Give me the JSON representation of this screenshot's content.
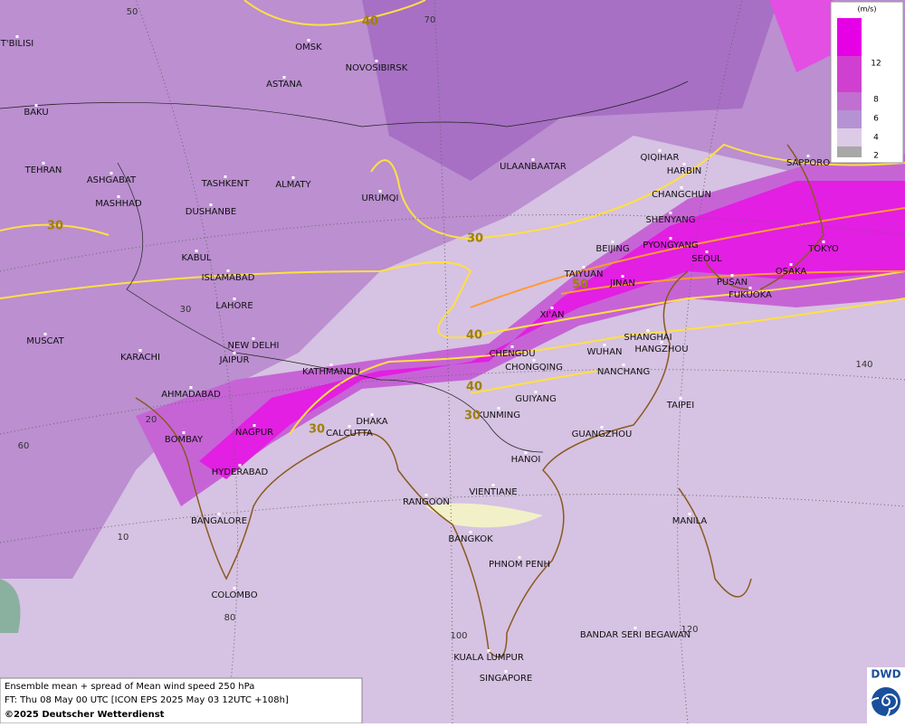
{
  "map": {
    "cities": [
      "OMSK",
      "NOVOSIBIRSK",
      "T'BILISI",
      "BAKU",
      "ASTANA",
      "TEHRAN",
      "ASHGABAT",
      "MASHHAD",
      "TASHKENT",
      "ALMATY",
      "DUSHANBE",
      "URUMQI",
      "ULAANBAATAR",
      "QIQIHAR",
      "HARBIN",
      "SAPPORO",
      "CHANGCHUN",
      "SHENYANG",
      "BEIJING",
      "PYONGYANG",
      "SEOUL",
      "TOKYO",
      "OSAKA",
      "TAIYUAN",
      "JINAN",
      "PUSAN",
      "FUKUOKA",
      "KABUL",
      "ISLAMABAD",
      "LAHORE",
      "XI'AN",
      "MUSCAT",
      "NEW DELHI",
      "KARACHI",
      "JAIPUR",
      "CHENGDU",
      "WUHAN",
      "SHANGHAI",
      "HANGZHOU",
      "KATHMANDU",
      "CHONGQING",
      "NANCHANG",
      "AHMADABAD",
      "GUIYANG",
      "TAIPEI",
      "KUNMING",
      "DHAKA",
      "CALCUTTA",
      "NAGPUR",
      "GUANGZHOU",
      "BOMBAY",
      "HANOI",
      "HYDERABAD",
      "VIENTIANE",
      "RANGOON",
      "BANGALORE",
      "MANILA",
      "BANGKOK",
      "PHNOM PENH",
      "COLOMBO",
      "BANDAR SERI BEGAWAN",
      "KUALA LUMPUR",
      "SINGAPORE"
    ],
    "contour_labels": [
      40,
      30,
      30,
      40,
      40,
      50,
      30,
      30
    ],
    "grid_labels": [
      50,
      70,
      30,
      20,
      60,
      10,
      80,
      100,
      120,
      140
    ]
  },
  "legend": {
    "unit": "(m/s)",
    "levels": [
      12,
      8,
      6,
      4,
      2
    ]
  },
  "footer": {
    "line1": "Ensemble mean + spread of Mean wind speed 250 hPa",
    "line2": "FT: Thu 08 May 00 UTC [ICON EPS 2025 May 03 12UTC +108h]",
    "line3": "©2025 Deutscher Wetterdienst"
  },
  "logo": "DWD"
}
